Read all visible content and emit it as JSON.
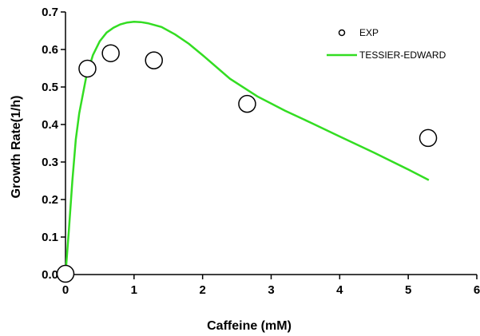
{
  "chart_data": {
    "type": "scatter",
    "xlabel": "Caffeine (mM)",
    "ylabel": "Growth Rate(1/h)",
    "xlim": [
      0,
      6
    ],
    "ylim": [
      0,
      0.7
    ],
    "x_ticks": [
      "0",
      "1",
      "2",
      "3",
      "4",
      "5",
      "6"
    ],
    "y_ticks": [
      "0.0",
      "0.1",
      "0.2",
      "0.3",
      "0.4",
      "0.5",
      "0.6",
      "0.7"
    ],
    "grid": false,
    "legend_position": "top-right",
    "series": [
      {
        "name": "EXP",
        "kind": "scatter",
        "marker": "open-circle",
        "color": "#000000",
        "x": [
          0.0,
          0.32,
          0.66,
          1.29,
          2.65,
          5.29
        ],
        "y": [
          0.002,
          0.549,
          0.59,
          0.571,
          0.455,
          0.364
        ]
      },
      {
        "name": "TESSIER-EDWARD",
        "kind": "line",
        "color": "#33dd22",
        "x": [
          0.0,
          0.05,
          0.1,
          0.15,
          0.2,
          0.3,
          0.4,
          0.5,
          0.6,
          0.7,
          0.8,
          0.9,
          1.0,
          1.1,
          1.2,
          1.4,
          1.6,
          1.8,
          2.0,
          2.4,
          2.8,
          3.2,
          3.6,
          4.0,
          4.5,
          5.0,
          5.3
        ],
        "y": [
          0.0,
          0.12,
          0.25,
          0.36,
          0.43,
          0.525,
          0.585,
          0.622,
          0.645,
          0.658,
          0.667,
          0.672,
          0.674,
          0.673,
          0.67,
          0.66,
          0.64,
          0.615,
          0.585,
          0.522,
          0.475,
          0.437,
          0.403,
          0.368,
          0.325,
          0.28,
          0.252
        ]
      }
    ]
  }
}
